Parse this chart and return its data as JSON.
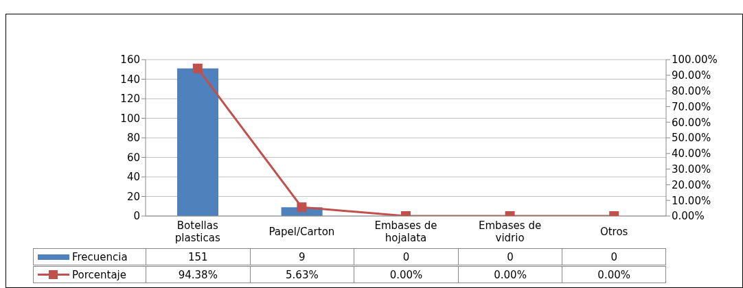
{
  "chart_data": {
    "type": "bar",
    "categories": [
      "Botellas plasticas",
      "Papel/Carton",
      "Embases de hojalata",
      "Embases de vidrio",
      "Otros"
    ],
    "series": [
      {
        "name": "Frecuencia",
        "color": "#4f81bd",
        "values": [
          151,
          9,
          0,
          0,
          0
        ],
        "value_labels": [
          "151",
          "9",
          "0",
          "0",
          "0"
        ]
      },
      {
        "name": "Porcentaje",
        "type": "line",
        "axis": "y2",
        "color": "#c0504d",
        "marker": "square",
        "values": [
          94.38,
          5.63,
          0,
          0,
          0
        ],
        "value_labels": [
          "94.38%",
          "5.63%",
          "0.00%",
          "0.00%",
          "0.00%"
        ]
      }
    ],
    "ylim": [
      0,
      160
    ],
    "yticks": [
      0,
      20,
      40,
      60,
      80,
      100,
      120,
      140,
      160
    ],
    "y2lim": [
      0,
      100
    ],
    "y2ticks": [
      {
        "value": 0,
        "label": "0.00%"
      },
      {
        "value": 10,
        "label": "10.00%"
      },
      {
        "value": 20,
        "label": "20.00%"
      },
      {
        "value": 30,
        "label": "30.00%"
      },
      {
        "value": 40,
        "label": "40.00%"
      },
      {
        "value": 50,
        "label": "50.00%"
      },
      {
        "value": 60,
        "label": "60.00%"
      },
      {
        "value": 70,
        "label": "70.00%"
      },
      {
        "value": 80,
        "label": "80.00%"
      },
      {
        "value": 90,
        "label": "90.00%"
      },
      {
        "value": 100,
        "label": "100.00%"
      }
    ],
    "grid": "y",
    "legend": "bottom"
  }
}
